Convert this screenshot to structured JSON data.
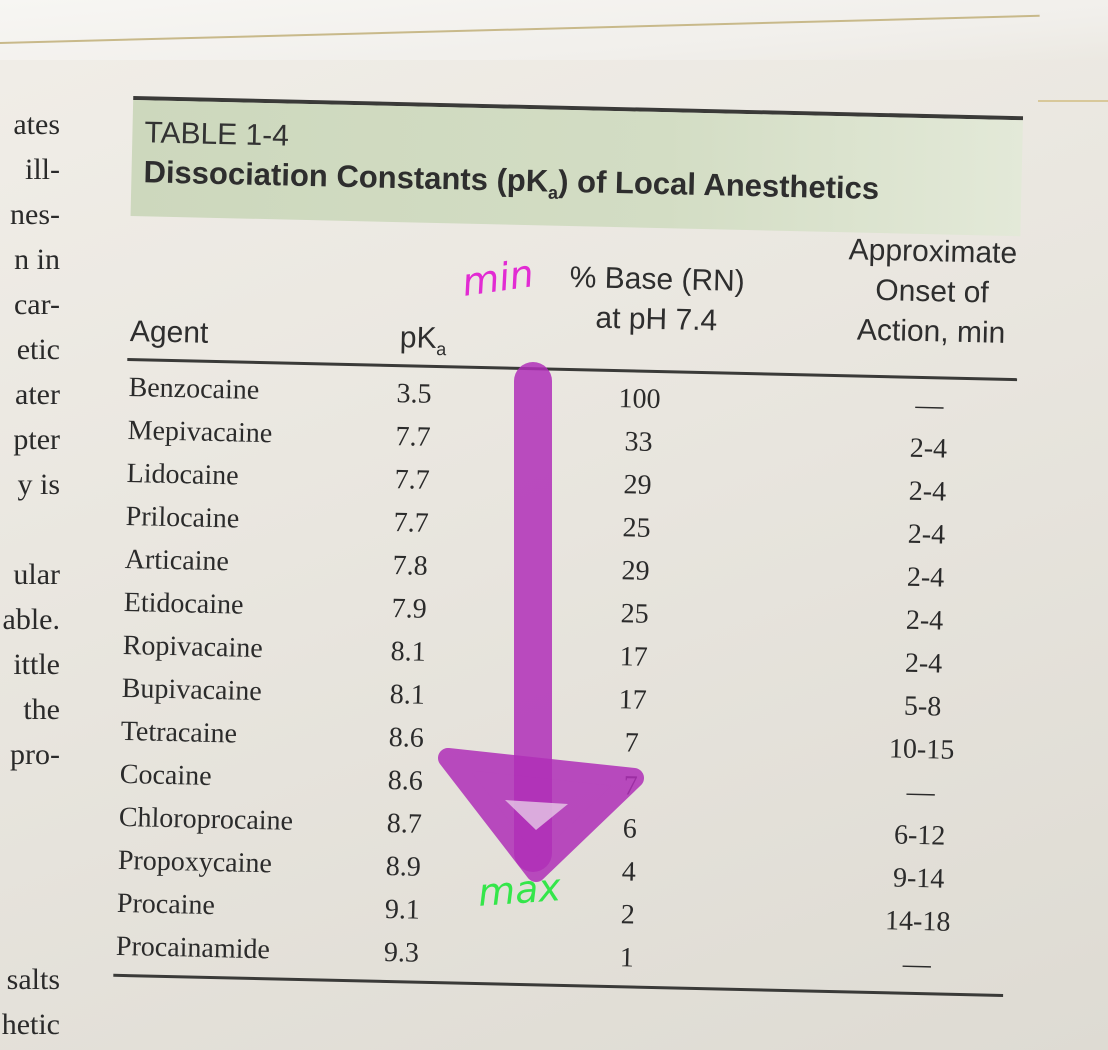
{
  "margin_text": [
    "ates",
    "ill-",
    "nes-",
    "n in",
    "car-",
    "etic",
    "ater",
    "pter",
    "y is",
    "",
    "ular",
    "able.",
    "ittle",
    "the",
    "pro-",
    "",
    "",
    "",
    "",
    "salts",
    "hetic"
  ],
  "table": {
    "label": "TABLE 1-4",
    "title": "Dissociation Constants (pKa) of Local Anesthetics",
    "headers": {
      "agent": "Agent",
      "pka": "pKa",
      "base_line1": "% Base (RN)",
      "base_line2": "at pH 7.4",
      "onset_line1": "Approximate",
      "onset_line2": "Onset of",
      "onset_line3": "Action, min"
    },
    "rows": [
      {
        "agent": "Benzocaine",
        "pka": "3.5",
        "base": "100",
        "onset": "—"
      },
      {
        "agent": "Mepivacaine",
        "pka": "7.7",
        "base": "33",
        "onset": "2-4"
      },
      {
        "agent": "Lidocaine",
        "pka": "7.7",
        "base": "29",
        "onset": "2-4"
      },
      {
        "agent": "Prilocaine",
        "pka": "7.7",
        "base": "25",
        "onset": "2-4"
      },
      {
        "agent": "Articaine",
        "pka": "7.8",
        "base": "29",
        "onset": "2-4"
      },
      {
        "agent": "Etidocaine",
        "pka": "7.9",
        "base": "25",
        "onset": "2-4"
      },
      {
        "agent": "Ropivacaine",
        "pka": "8.1",
        "base": "17",
        "onset": "2-4"
      },
      {
        "agent": "Bupivacaine",
        "pka": "8.1",
        "base": "17",
        "onset": "5-8"
      },
      {
        "agent": "Tetracaine",
        "pka": "8.6",
        "base": "7",
        "onset": "10-15"
      },
      {
        "agent": "Cocaine",
        "pka": "8.6",
        "base": "7",
        "onset": "—"
      },
      {
        "agent": "Chloroprocaine",
        "pka": "8.7",
        "base": "6",
        "onset": "6-12"
      },
      {
        "agent": "Propoxycaine",
        "pka": "8.9",
        "base": "4",
        "onset": "9-14"
      },
      {
        "agent": "Procaine",
        "pka": "9.1",
        "base": "2",
        "onset": "14-18"
      },
      {
        "agent": "Procainamide",
        "pka": "9.3",
        "base": "1",
        "onset": "—"
      }
    ]
  },
  "annotations": {
    "min_label": "min",
    "max_label": "max",
    "arrow_color": "#b02fb8",
    "min_color": "#e22bd3",
    "max_color": "#34e64a"
  }
}
